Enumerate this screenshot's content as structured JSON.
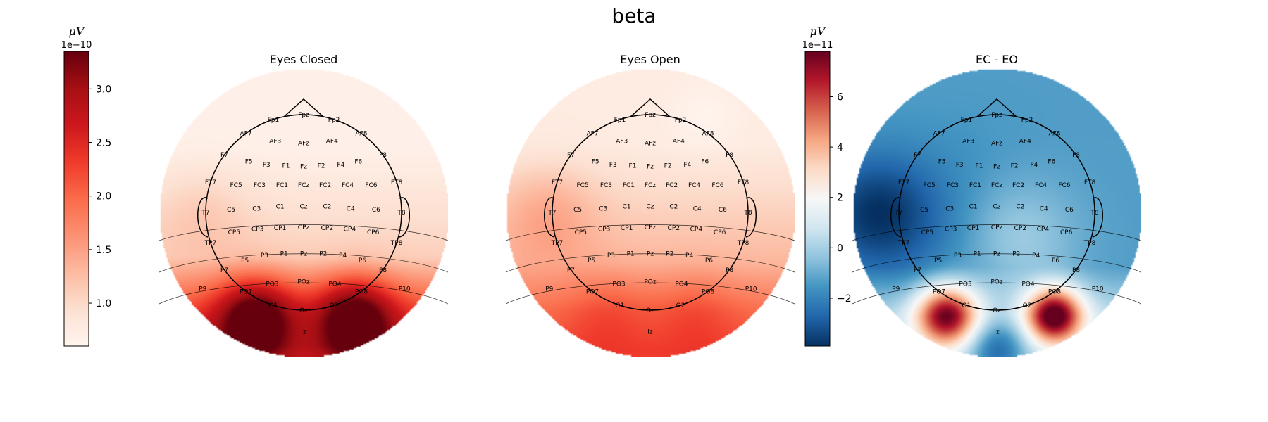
{
  "figure": {
    "title": "beta"
  },
  "colorbars": [
    {
      "unit": "μV",
      "exponent_label": "1e−10",
      "ticks": [
        "1.0",
        "1.5",
        "2.0",
        "2.5",
        "3.0"
      ],
      "tick_values": [
        1.0,
        1.5,
        2.0,
        2.5,
        3.0
      ],
      "range": [
        0.6,
        3.35
      ],
      "colormap": "Reds"
    },
    {
      "unit": "μV",
      "exponent_label": "1e−11",
      "ticks": [
        "−2",
        "0",
        "2",
        "4",
        "6"
      ],
      "tick_values": [
        -2,
        0,
        2,
        4,
        6
      ],
      "range": [
        -3.9,
        7.8
      ],
      "colormap": "RdBu_r"
    }
  ],
  "chart_data": [
    {
      "type": "heatmap",
      "subtype": "topomap",
      "title": "Eyes Closed",
      "colorbar": 0,
      "colors": {
        "low": "#fff5f0",
        "mid": "#fb6a4a",
        "high": "#67000d"
      },
      "sensors": [
        "Fp1",
        "Fpz",
        "Fp2",
        "AF7",
        "AF3",
        "AFz",
        "AF4",
        "AF8",
        "F7",
        "F5",
        "F3",
        "F1",
        "Fz",
        "F2",
        "F4",
        "F6",
        "F8",
        "FT7",
        "FC5",
        "FC3",
        "FC1",
        "FCz",
        "FC2",
        "FC4",
        "FC6",
        "FT8",
        "T7",
        "C5",
        "C3",
        "C1",
        "Cz",
        "C2",
        "C4",
        "C6",
        "T8",
        "TP7",
        "CP5",
        "CP3",
        "CP1",
        "CPz",
        "CP2",
        "CP4",
        "CP6",
        "TP8",
        "P7",
        "P5",
        "P3",
        "P1",
        "Pz",
        "P2",
        "P4",
        "P6",
        "P8",
        "P9",
        "PO7",
        "PO3",
        "POz",
        "PO4",
        "PO8",
        "P10",
        "O1",
        "Oz",
        "O2",
        "Iz"
      ]
    },
    {
      "type": "heatmap",
      "subtype": "topomap",
      "title": "Eyes Open",
      "colorbar": 0,
      "colors": {
        "low": "#fff5f0",
        "mid": "#fb6a4a",
        "high": "#67000d"
      },
      "sensors": [
        "Fp1",
        "Fpz",
        "Fp2",
        "AF7",
        "AF3",
        "AFz",
        "AF4",
        "AF8",
        "F7",
        "F5",
        "F3",
        "F1",
        "Fz",
        "F2",
        "F4",
        "F6",
        "F8",
        "FT7",
        "FC5",
        "FC3",
        "FC1",
        "FCz",
        "FC2",
        "FC4",
        "FC6",
        "FT8",
        "T7",
        "C5",
        "C3",
        "C1",
        "Cz",
        "C2",
        "C4",
        "C6",
        "T8",
        "TP7",
        "CP5",
        "CP3",
        "CP1",
        "CPz",
        "CP2",
        "CP4",
        "CP6",
        "TP8",
        "P7",
        "P5",
        "P3",
        "P1",
        "Pz",
        "P2",
        "P4",
        "P6",
        "P8",
        "P9",
        "PO7",
        "PO3",
        "POz",
        "PO4",
        "PO8",
        "P10",
        "O1",
        "Oz",
        "O2",
        "Iz"
      ]
    },
    {
      "type": "heatmap",
      "subtype": "topomap",
      "title": "EC - EO",
      "colorbar": 1,
      "colors": {
        "low": "#053061",
        "mid": "#f7f7f7",
        "high": "#67001f"
      },
      "sensors": [
        "Fp1",
        "Fpz",
        "Fp2",
        "AF7",
        "AF3",
        "AFz",
        "AF4",
        "AF8",
        "F7",
        "F5",
        "F3",
        "F1",
        "Fz",
        "F2",
        "F4",
        "F6",
        "F8",
        "FT7",
        "FC5",
        "FC3",
        "FC1",
        "FCz",
        "FC2",
        "FC4",
        "FC6",
        "FT8",
        "T7",
        "C5",
        "C3",
        "C1",
        "Cz",
        "C2",
        "C4",
        "C6",
        "T8",
        "TP7",
        "CP5",
        "CP3",
        "CP1",
        "CPz",
        "CP2",
        "CP4",
        "CP6",
        "TP8",
        "P7",
        "P5",
        "P3",
        "P1",
        "Pz",
        "P2",
        "P4",
        "P6",
        "P8",
        "P9",
        "PO7",
        "PO3",
        "POz",
        "PO4",
        "PO8",
        "P10",
        "O1",
        "Oz",
        "O2",
        "Iz"
      ]
    }
  ]
}
